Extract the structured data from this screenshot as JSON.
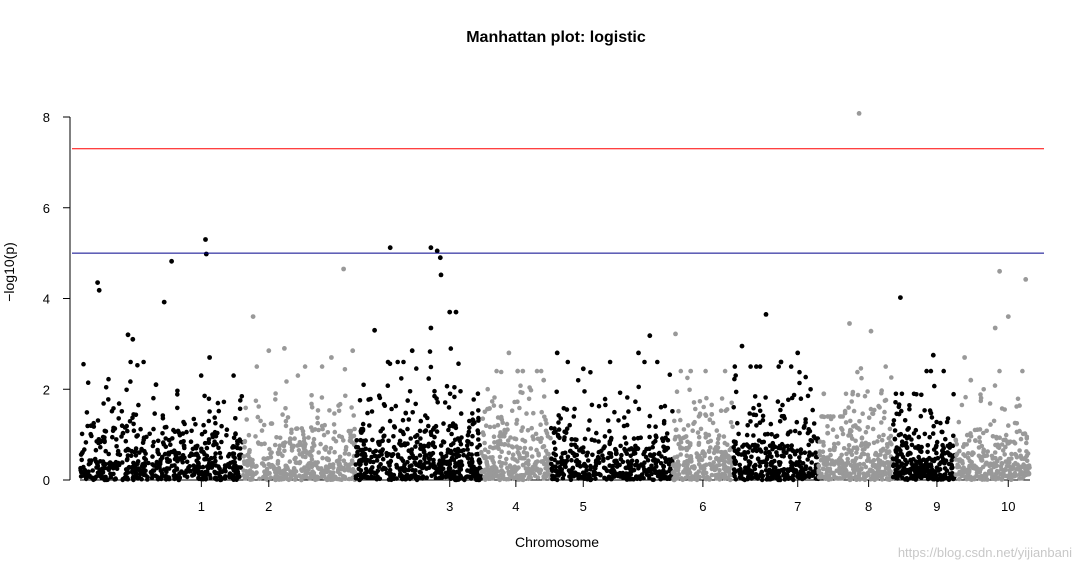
{
  "chart_data": {
    "type": "scatter",
    "title": "Manhattan plot: logistic",
    "xlabel": "Chromosome",
    "ylabel": "−log10(p)",
    "ylim": [
      0,
      8.3
    ],
    "yticks": [
      0,
      2,
      4,
      6,
      8
    ],
    "chromosomes": [
      {
        "label": "",
        "color": "#000000",
        "n": 260,
        "max": 2.6,
        "peaks": [
          [
            0.22,
            4.35
          ],
          [
            0.24,
            4.18
          ],
          [
            0.6,
            3.2
          ],
          [
            0.66,
            3.1
          ],
          [
            0.95,
            2.1
          ]
        ]
      },
      {
        "label": "1",
        "color": "#000000",
        "n": 300,
        "max": 2.3,
        "peaks": [
          [
            0.05,
            3.92
          ],
          [
            0.14,
            4.82
          ],
          [
            0.55,
            5.3
          ],
          [
            0.56,
            4.98
          ],
          [
            0.6,
            2.7
          ]
        ]
      },
      {
        "label": "2",
        "color": "#999999",
        "n": 170,
        "max": 2.5,
        "peaks": [
          [
            0.2,
            3.6
          ],
          [
            0.5,
            2.85
          ],
          [
            0.8,
            2.9
          ]
        ]
      },
      {
        "label": "",
        "color": "#999999",
        "n": 230,
        "max": 2.5,
        "peaks": [
          [
            0.8,
            4.65
          ],
          [
            0.95,
            2.85
          ],
          [
            0.6,
            2.7
          ]
        ]
      },
      {
        "label": "",
        "color": "#000000",
        "n": 230,
        "max": 2.6,
        "peaks": [
          [
            0.3,
            3.3
          ],
          [
            0.55,
            5.12
          ],
          [
            0.9,
            2.85
          ]
        ]
      },
      {
        "label": "3",
        "color": "#000000",
        "n": 280,
        "max": 2.9,
        "peaks": [
          [
            0.2,
            5.12
          ],
          [
            0.3,
            5.05
          ],
          [
            0.35,
            4.9
          ],
          [
            0.36,
            4.52
          ],
          [
            0.5,
            3.7
          ],
          [
            0.6,
            3.7
          ],
          [
            0.2,
            3.35
          ]
        ]
      },
      {
        "label": "4",
        "color": "#999999",
        "n": 290,
        "max": 2.4,
        "peaks": [
          [
            0.4,
            2.8
          ],
          [
            0.6,
            2.4
          ],
          [
            0.9,
            2.2
          ]
        ]
      },
      {
        "label": "5",
        "color": "#000000",
        "n": 210,
        "max": 2.6,
        "peaks": [
          [
            0.1,
            2.8
          ],
          [
            0.5,
            2.45
          ]
        ]
      },
      {
        "label": "",
        "color": "#000000",
        "n": 200,
        "max": 2.6,
        "peaks": [
          [
            0.6,
            3.18
          ],
          [
            0.4,
            2.8
          ]
        ]
      },
      {
        "label": "6",
        "color": "#999999",
        "n": 260,
        "max": 2.4,
        "peaks": [
          [
            0.05,
            3.22
          ],
          [
            0.3,
            2.4
          ]
        ]
      },
      {
        "label": "",
        "color": "#000000",
        "n": 170,
        "max": 2.5,
        "peaks": [
          [
            0.2,
            2.95
          ],
          [
            0.75,
            3.65
          ]
        ]
      },
      {
        "label": "7",
        "color": "#000000",
        "n": 170,
        "max": 2.5,
        "peaks": [
          [
            0.1,
            2.6
          ],
          [
            0.5,
            2.8
          ]
        ]
      },
      {
        "label": "",
        "color": "#999999",
        "n": 110,
        "max": 1.4,
        "peaks": [
          [
            0.2,
            1.9
          ]
        ]
      },
      {
        "label": "8",
        "color": "#999999",
        "n": 230,
        "max": 2.5,
        "peaks": [
          [
            0.1,
            3.45
          ],
          [
            0.3,
            8.08
          ],
          [
            0.55,
            3.28
          ]
        ]
      },
      {
        "label": "",
        "color": "#000000",
        "n": 130,
        "max": 1.9,
        "peaks": [
          [
            0.3,
            4.02
          ]
        ]
      },
      {
        "label": "9",
        "color": "#000000",
        "n": 170,
        "max": 2.4,
        "peaks": [
          [
            0.4,
            2.75
          ]
        ]
      },
      {
        "label": "",
        "color": "#999999",
        "n": 120,
        "max": 2.0,
        "peaks": [
          [
            0.3,
            2.7
          ],
          [
            0.5,
            2.2
          ]
        ]
      },
      {
        "label": "10",
        "color": "#999999",
        "n": 170,
        "max": 2.4,
        "peaks": [
          [
            0.3,
            4.6
          ],
          [
            0.9,
            4.42
          ],
          [
            0.2,
            3.35
          ],
          [
            0.5,
            3.6
          ]
        ]
      }
    ],
    "thresholds": [
      {
        "value": 7.3,
        "color": "#ff0000"
      },
      {
        "value": 5.0,
        "color": "#00008b"
      }
    ]
  },
  "watermark": "https://blog.csdn.net/yijianbani"
}
